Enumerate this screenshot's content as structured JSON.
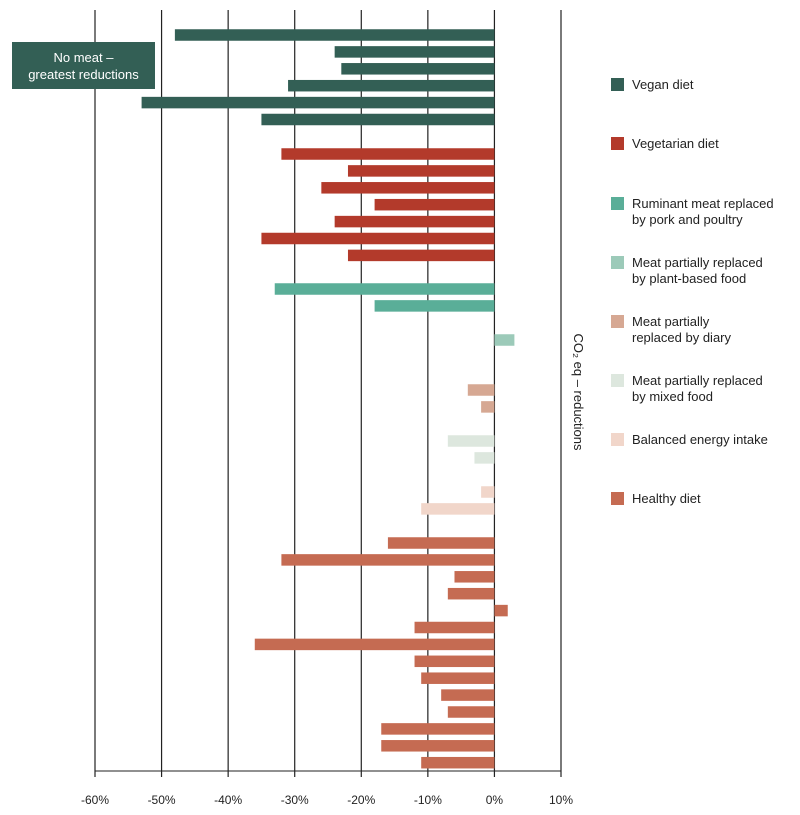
{
  "chart_data": {
    "type": "bar",
    "orientation": "horizontal",
    "title": "",
    "xlabel": "",
    "ylabel": "CO₂ eq – reductions",
    "xlim": [
      -60,
      10
    ],
    "xticks": [
      -60,
      -50,
      -40,
      -30,
      -20,
      -10,
      0,
      10
    ],
    "xtick_labels": [
      "-60%",
      "-50%",
      "-40%",
      "-30%",
      "-20%",
      "-10%",
      "0%",
      "10%"
    ],
    "grid": "vertical",
    "legend_position": "right",
    "annotation": [
      "No meat –",
      "greatest reductions"
    ],
    "series": [
      {
        "name": "Vegan diet",
        "color": "#335f55",
        "values": [
          -48,
          -24,
          -23,
          -31,
          -53,
          -35
        ]
      },
      {
        "name": "Vegetarian diet",
        "color": "#b33a2b",
        "values": [
          -32,
          -22,
          -26,
          -18,
          -24,
          -35,
          -22
        ]
      },
      {
        "name": "Ruminant meat replaced\nby pork and poultry",
        "color": "#5aae98",
        "values": [
          -33,
          -18
        ]
      },
      {
        "name": "Meat partially replaced\nby plant-based food",
        "color": "#9ccab9",
        "values": [
          3
        ]
      },
      {
        "name": "Meat partially\nreplaced by diary",
        "color": "#d6a893",
        "values": [
          -4,
          -2
        ]
      },
      {
        "name": "Meat partially replaced\nby mixed food",
        "color": "#dde7de",
        "values": [
          -7,
          -3
        ]
      },
      {
        "name": "Balanced energy intake",
        "color": "#f1d6ca",
        "values": [
          -2,
          -11
        ]
      },
      {
        "name": "Healthy diet",
        "color": "#c56b52",
        "values": [
          -16,
          -32,
          -6,
          -7,
          2,
          -12,
          -36,
          -12,
          -11,
          -8,
          -7,
          -17,
          -17,
          -11
        ]
      }
    ]
  }
}
